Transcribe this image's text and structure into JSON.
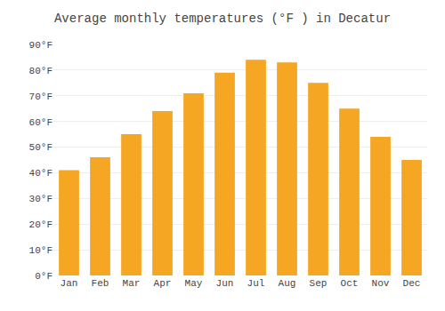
{
  "chart_data": {
    "type": "bar",
    "title": "Average monthly temperatures (°F ) in Decatur",
    "categories": [
      "Jan",
      "Feb",
      "Mar",
      "Apr",
      "May",
      "Jun",
      "Jul",
      "Aug",
      "Sep",
      "Oct",
      "Nov",
      "Dec"
    ],
    "values": [
      41,
      46,
      55,
      64,
      71,
      79,
      84,
      83,
      75,
      65,
      54,
      45
    ],
    "color": "#F5A623",
    "ylim": [
      0,
      90
    ],
    "yticks": [
      {
        "value": 0,
        "label": "0°F"
      },
      {
        "value": 10,
        "label": "10°F"
      },
      {
        "value": 20,
        "label": "20°F"
      },
      {
        "value": 30,
        "label": "30°F"
      },
      {
        "value": 40,
        "label": "40°F"
      },
      {
        "value": 50,
        "label": "50°F"
      },
      {
        "value": 60,
        "label": "60°F"
      },
      {
        "value": 70,
        "label": "70°F"
      },
      {
        "value": 80,
        "label": "80°F"
      },
      {
        "value": 90,
        "label": "90°F"
      }
    ],
    "grid": true
  }
}
